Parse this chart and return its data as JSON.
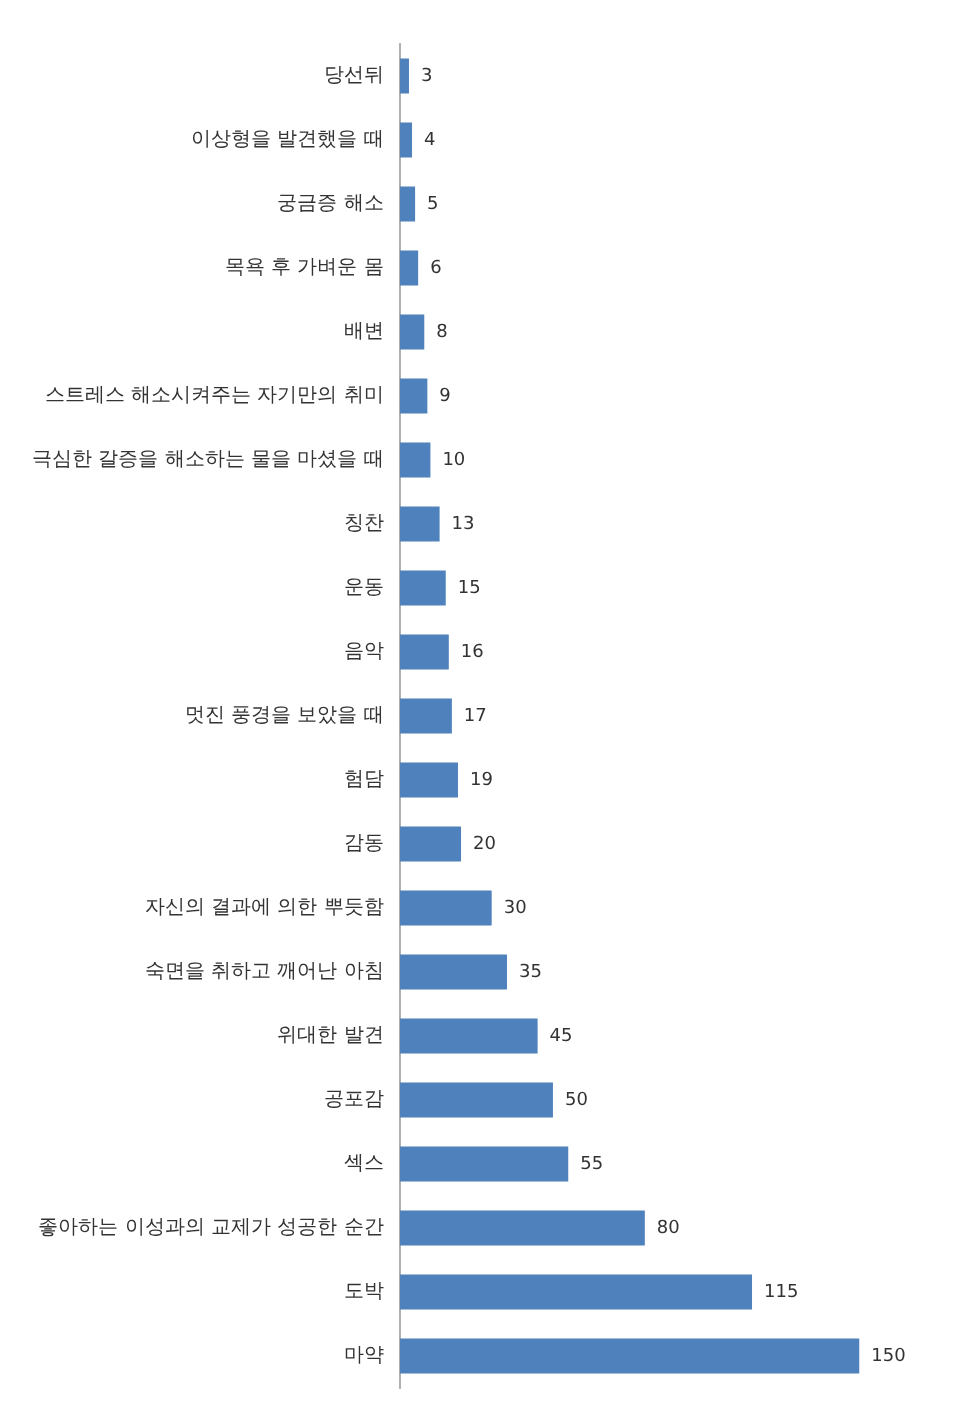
{
  "chart_data": {
    "type": "bar",
    "orientation": "horizontal",
    "categories": [
      "당선뒤",
      "이상형을 발견했을 때",
      "궁금증 해소",
      "목욕 후 가벼운 몸",
      "배변",
      "스트레스 해소시켜주는 자기만의 취미",
      "극심한 갈증을 해소하는 물을 마셨을 때",
      "칭찬",
      "운동",
      "음악",
      "멋진 풍경을 보았을 때",
      "험담",
      "감동",
      "자신의 결과에 의한 뿌듯함",
      "숙면을 취하고 깨어난 아침",
      "위대한 발견",
      "공포감",
      "섹스",
      "좋아하는 이성과의 교제가 성공한 순간",
      "도박",
      "마약"
    ],
    "values": [
      3,
      4,
      5,
      6,
      8,
      9,
      10,
      13,
      15,
      16,
      17,
      19,
      20,
      30,
      35,
      45,
      50,
      55,
      80,
      115,
      150
    ],
    "color": "#4f81bd",
    "data_labels": true,
    "legend": false,
    "tick_labels": "y"
  }
}
